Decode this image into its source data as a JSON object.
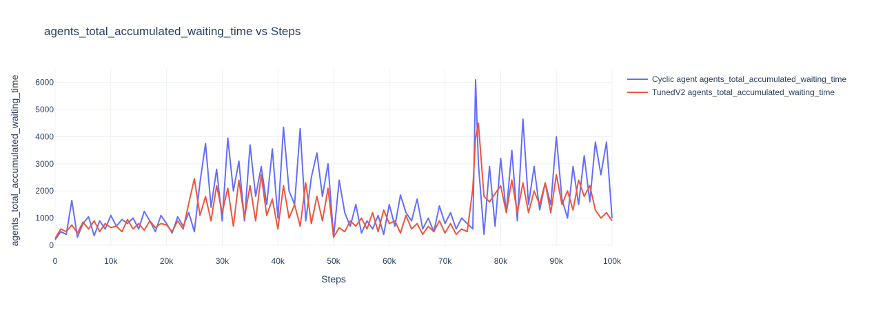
{
  "chart_data": {
    "type": "line",
    "title": "agents_total_accumulated_waiting_time vs Steps",
    "xlabel": "Steps",
    "ylabel": "agents_total_accumulated_waiting_time",
    "xlim": [
      0,
      100000
    ],
    "ylim": [
      0,
      6500
    ],
    "grid": true,
    "legend_position": "top-right, outside plot",
    "x_ticks": [
      0,
      10000,
      20000,
      30000,
      40000,
      50000,
      60000,
      70000,
      80000,
      90000,
      100000
    ],
    "x_tick_labels": [
      "0",
      "10k",
      "20k",
      "30k",
      "40k",
      "50k",
      "60k",
      "70k",
      "80k",
      "90k",
      "100k"
    ],
    "y_ticks": [
      0,
      1000,
      2000,
      3000,
      4000,
      5000,
      6000
    ],
    "y_tick_labels": [
      "0",
      "1000",
      "2000",
      "3000",
      "4000",
      "5000",
      "6000"
    ],
    "x": [
      0,
      1000,
      2000,
      3000,
      4000,
      5000,
      6000,
      7000,
      8000,
      9000,
      10000,
      11000,
      12000,
      13000,
      14000,
      15000,
      16000,
      17000,
      18000,
      19000,
      20000,
      21000,
      22000,
      23000,
      24000,
      25000,
      26000,
      27000,
      28000,
      29000,
      30000,
      31000,
      32000,
      33000,
      34000,
      35000,
      36000,
      37000,
      38000,
      39000,
      40000,
      41000,
      42000,
      43000,
      44000,
      45000,
      46000,
      47000,
      48000,
      49000,
      50000,
      51000,
      52000,
      53000,
      54000,
      55000,
      56000,
      57000,
      58000,
      59000,
      60000,
      61000,
      62000,
      63000,
      64000,
      65000,
      66000,
      67000,
      68000,
      69000,
      70000,
      71000,
      72000,
      73000,
      74000,
      75000,
      75500,
      76000,
      77000,
      78000,
      79000,
      80000,
      81000,
      82000,
      83000,
      84000,
      85000,
      86000,
      87000,
      88000,
      89000,
      90000,
      91000,
      92000,
      93000,
      94000,
      95000,
      96000,
      97000,
      98000,
      99000,
      100000
    ],
    "series": [
      {
        "name": "Cyclic agent agents_total_accumulated_waiting_time",
        "color": "#636efa",
        "values": [
          200,
          500,
          400,
          1650,
          300,
          800,
          1050,
          350,
          900,
          600,
          1100,
          700,
          950,
          800,
          1000,
          600,
          1250,
          900,
          500,
          1100,
          800,
          450,
          1050,
          700,
          1200,
          500,
          2300,
          3750,
          1400,
          2800,
          900,
          3950,
          2000,
          3100,
          900,
          3700,
          1800,
          2900,
          1500,
          3550,
          1000,
          4350,
          2000,
          1500,
          4300,
          900,
          2500,
          3400,
          1800,
          3000,
          300,
          2400,
          1200,
          700,
          1500,
          450,
          900,
          600,
          1100,
          400,
          1500,
          700,
          1850,
          1200,
          900,
          1700,
          600,
          1000,
          500,
          1450,
          800,
          1200,
          600,
          1000,
          800,
          600,
          6100,
          3000,
          400,
          2900,
          700,
          3200,
          1200,
          3500,
          900,
          4650,
          1500,
          2900,
          1300,
          2300,
          1500,
          4000,
          1700,
          1000,
          2900,
          1500,
          3300,
          1600,
          3800,
          2600,
          3800,
          1000
        ]
      },
      {
        "name": "TunedV2 agents_total_accumulated_waiting_time",
        "color": "#ef553b",
        "values": [
          250,
          600,
          500,
          750,
          450,
          850,
          600,
          900,
          500,
          800,
          650,
          700,
          500,
          950,
          600,
          800,
          550,
          900,
          650,
          800,
          750,
          500,
          900,
          600,
          1550,
          2450,
          1100,
          1800,
          900,
          2200,
          1200,
          2100,
          700,
          2400,
          1000,
          2200,
          900,
          2600,
          1100,
          1700,
          600,
          2200,
          1000,
          1500,
          700,
          2300,
          800,
          1800,
          900,
          2100,
          300,
          650,
          500,
          900,
          700,
          1000,
          600,
          1200,
          500,
          1300,
          800,
          900,
          450,
          1100,
          600,
          800,
          400,
          700,
          500,
          900,
          450,
          800,
          400,
          600,
          500,
          2100,
          3950,
          4500,
          1800,
          1600,
          1900,
          2200,
          1200,
          2400,
          1200,
          2300,
          1200,
          2000,
          1500,
          2300,
          1200,
          2600,
          1500,
          2000,
          1300,
          2400,
          1800,
          2200,
          1300,
          1000,
          1200,
          900
        ]
      }
    ]
  }
}
